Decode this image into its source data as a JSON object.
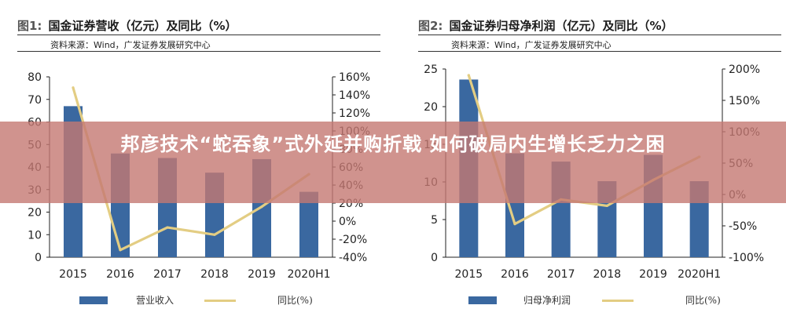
{
  "headline": "邦彦技术“蛇吞象”式外延并购折戟 如何破局内生增长乏力之困",
  "chart_data": [
    {
      "type": "bar+line",
      "figure_label": "图1:",
      "title": "国金证券营收（亿元）及同比（%）",
      "source": "资料来源：Wind，广发证券发展研究中心",
      "categories": [
        "2015",
        "2016",
        "2017",
        "2018",
        "2019",
        "2020H1"
      ],
      "series": [
        {
          "name": "营业收入",
          "type": "bar",
          "axis": "left",
          "color": "#3a68a0",
          "values": [
            67,
            46,
            44,
            37.5,
            43.5,
            29
          ]
        },
        {
          "name": "同比(%)",
          "type": "line",
          "axis": "right",
          "color": "#e3cd83",
          "values": [
            148,
            -32,
            -7,
            -15,
            16,
            52
          ]
        }
      ],
      "y_left": {
        "min": 0,
        "max": 80,
        "step": 10,
        "ticks": [
          "0",
          "10",
          "20",
          "30",
          "40",
          "50",
          "60",
          "70",
          "80"
        ]
      },
      "y_right": {
        "min": -40,
        "max": 160,
        "step": 20,
        "ticks": [
          "-40%",
          "-20%",
          "0%",
          "20%",
          "40%",
          "60%",
          "80%",
          "100%",
          "120%",
          "140%",
          "160%"
        ]
      },
      "legend": [
        "营业收入",
        "同比(%)"
      ],
      "legend_position": "bottom"
    },
    {
      "type": "bar+line",
      "figure_label": "图2:",
      "title": "国金证券归母净利润（亿元）及同比（%）",
      "source": "资料来源：Wind，广发证券发展研究中心",
      "categories": [
        "2015",
        "2016",
        "2017",
        "2018",
        "2019",
        "2020H1"
      ],
      "series": [
        {
          "name": "归母净利润",
          "type": "bar",
          "axis": "left",
          "color": "#3a68a0",
          "values": [
            23.6,
            13.8,
            12.7,
            10.1,
            13.6,
            10.1
          ]
        },
        {
          "name": "同比(%)",
          "type": "line",
          "axis": "right",
          "color": "#e3cd83",
          "values": [
            190,
            -47,
            -8,
            -18,
            23,
            60
          ]
        }
      ],
      "y_left": {
        "min": 0,
        "max": 25,
        "step": 5,
        "ticks": [
          "0",
          "5",
          "10",
          "15",
          "20",
          "25"
        ]
      },
      "y_right": {
        "min": -100,
        "max": 200,
        "step": 50,
        "ticks": [
          "-100%",
          "-50%",
          "0%",
          "50%",
          "100%",
          "150%",
          "200%"
        ]
      },
      "legend": [
        "归母净利润",
        "同比(%)"
      ],
      "legend_position": "bottom"
    }
  ]
}
